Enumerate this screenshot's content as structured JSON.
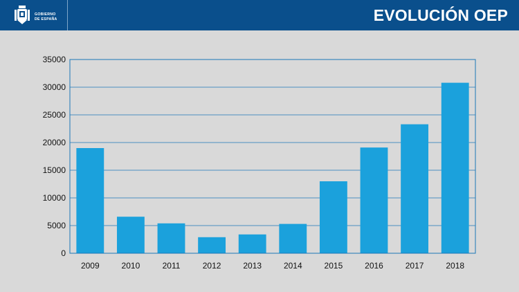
{
  "header": {
    "title": "EVOLUCIÓN OEP",
    "logo_line1": "GOBIERNO",
    "logo_line2": "DE ESPAÑA",
    "logo_icon": "coat-of-arms-icon",
    "background_color": "#0a4f8c"
  },
  "chart_data": {
    "type": "bar",
    "categories": [
      "2009",
      "2010",
      "2011",
      "2012",
      "2013",
      "2014",
      "2015",
      "2016",
      "2017",
      "2018"
    ],
    "values": [
      19000,
      6600,
      5400,
      2900,
      3400,
      5300,
      13000,
      19100,
      23300,
      30800
    ],
    "title": "",
    "xlabel": "",
    "ylabel": "",
    "ylim": [
      0,
      35000
    ],
    "yticks": [
      "0",
      "5000",
      "10000",
      "15000",
      "20000",
      "25000",
      "30000",
      "35000"
    ],
    "grid": true,
    "legend": "none",
    "bar_color": "#1ba1dc",
    "grid_color": "#1b77b8"
  }
}
